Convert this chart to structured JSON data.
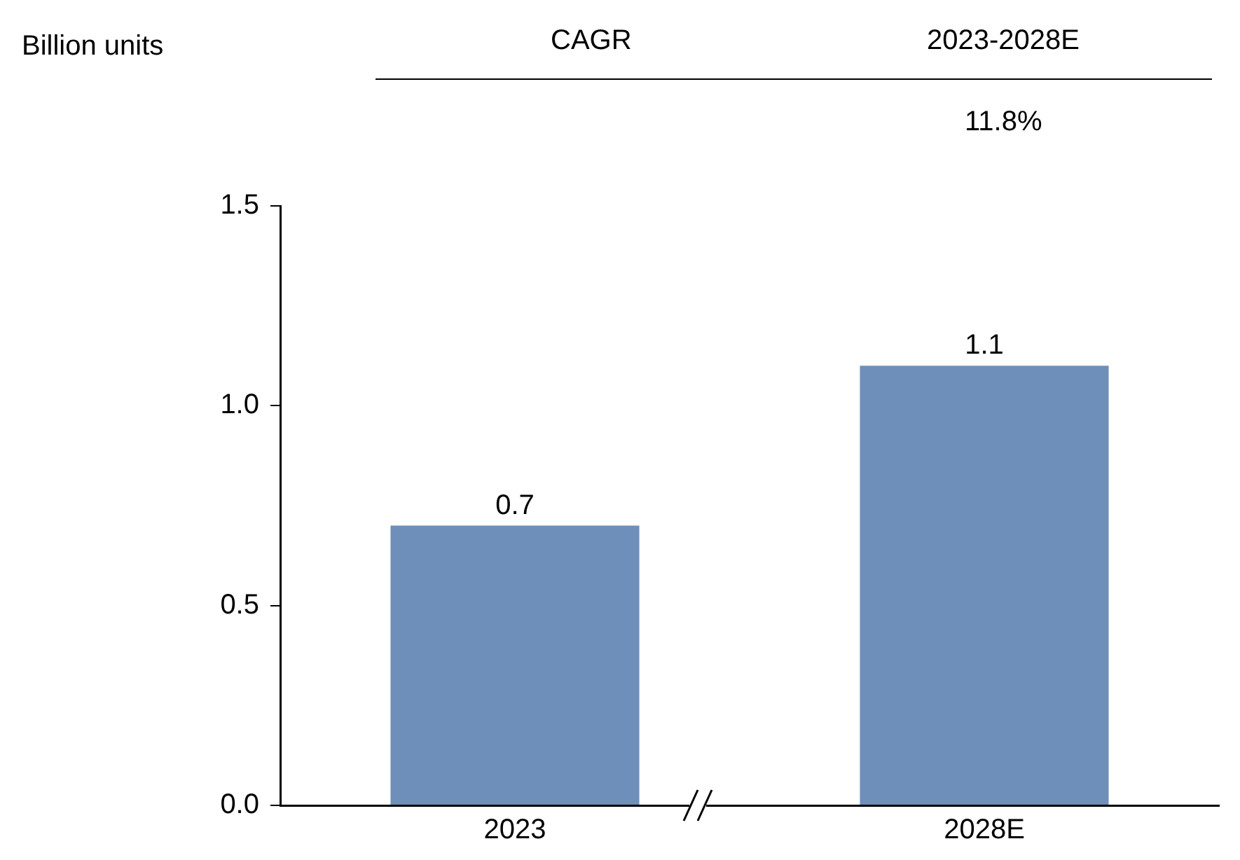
{
  "chart_data": {
    "type": "bar",
    "categories": [
      "2023",
      "2028E"
    ],
    "values": [
      0.7,
      1.1
    ],
    "color": "#6e8fba",
    "ylim": [
      0,
      1.5
    ],
    "yticks": [
      {
        "value": 0,
        "label": "0.0"
      },
      {
        "value": 0.5,
        "label": "0.5"
      },
      {
        "value": 1,
        "label": "1.0"
      },
      {
        "value": 1.5,
        "label": "1.5"
      }
    ],
    "grid": false,
    "legend": false,
    "data_labels": true,
    "annotations": [
      "Billion units",
      "CAGR",
      "2023-2028E",
      "11.8%"
    ]
  }
}
